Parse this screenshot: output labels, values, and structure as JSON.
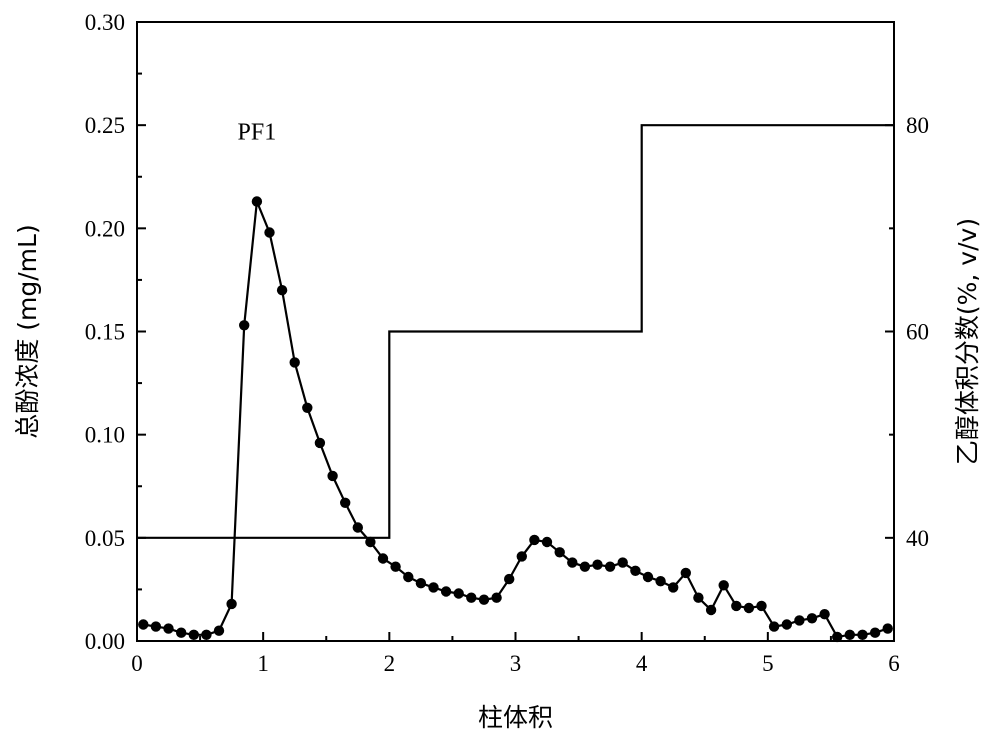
{
  "chart_data": {
    "type": "line",
    "title": "",
    "xlabel": "柱体积",
    "ylabel_left": "总酚浓度 (mg/mL)",
    "ylabel_right": "乙醇体积分数(%, v/v)",
    "xlim": [
      0,
      6
    ],
    "ylim_left": [
      0,
      0.3
    ],
    "ylim_right": [
      30,
      90
    ],
    "x_ticks": [
      {
        "value": 0,
        "label": "0"
      },
      {
        "value": 1,
        "label": "1"
      },
      {
        "value": 2,
        "label": "2"
      },
      {
        "value": 3,
        "label": "3"
      },
      {
        "value": 4,
        "label": "4"
      },
      {
        "value": 5,
        "label": "5"
      },
      {
        "value": 6,
        "label": "6"
      }
    ],
    "y_left_ticks": [
      {
        "value": 0,
        "label": "0.00"
      },
      {
        "value": 0.05,
        "label": "0.05"
      },
      {
        "value": 0.1,
        "label": "0.10"
      },
      {
        "value": 0.15,
        "label": "0.15"
      },
      {
        "value": 0.2,
        "label": "0.20"
      },
      {
        "value": 0.25,
        "label": "0.25"
      },
      {
        "value": 0.3,
        "label": "0.30"
      }
    ],
    "y_right_ticks": [
      {
        "value": 40,
        "label": "40"
      },
      {
        "value": 60,
        "label": "60"
      },
      {
        "value": 80,
        "label": "80"
      }
    ],
    "grid": false,
    "legend": "none",
    "annotations": [
      {
        "text": "PF1",
        "x": 0.95,
        "y": 0.247
      }
    ],
    "series": [
      {
        "axis": "left",
        "style": "line-marker",
        "color": "#000000",
        "x": [
          0.05,
          0.15,
          0.25,
          0.35,
          0.45,
          0.55,
          0.65,
          0.75,
          0.85,
          0.95,
          1.05,
          1.15,
          1.25,
          1.35,
          1.45,
          1.55,
          1.65,
          1.75,
          1.85,
          1.95,
          2.05,
          2.15,
          2.25,
          2.35,
          2.45,
          2.55,
          2.65,
          2.75,
          2.85,
          2.95,
          3.05,
          3.15,
          3.25,
          3.35,
          3.45,
          3.55,
          3.65,
          3.75,
          3.85,
          3.95,
          4.05,
          4.15,
          4.25,
          4.35,
          4.45,
          4.55,
          4.65,
          4.75,
          4.85,
          4.95,
          5.05,
          5.15,
          5.25,
          5.35,
          5.45,
          5.55,
          5.65,
          5.75,
          5.85,
          5.95
        ],
        "values": [
          0.008,
          0.007,
          0.006,
          0.004,
          0.003,
          0.003,
          0.005,
          0.018,
          0.153,
          0.213,
          0.198,
          0.17,
          0.135,
          0.113,
          0.096,
          0.08,
          0.067,
          0.055,
          0.048,
          0.04,
          0.036,
          0.031,
          0.028,
          0.026,
          0.024,
          0.023,
          0.021,
          0.02,
          0.021,
          0.03,
          0.041,
          0.049,
          0.048,
          0.043,
          0.038,
          0.036,
          0.037,
          0.036,
          0.038,
          0.034,
          0.031,
          0.029,
          0.026,
          0.033,
          0.021,
          0.015,
          0.027,
          0.017,
          0.016,
          0.017,
          0.007,
          0.008,
          0.01,
          0.011,
          0.013,
          0.002,
          0.003,
          0.003,
          0.004,
          0.006
        ]
      },
      {
        "axis": "right",
        "style": "step",
        "color": "#000000",
        "x": [
          0,
          2,
          2,
          4,
          4,
          6
        ],
        "values": [
          40,
          40,
          60,
          60,
          80,
          80
        ]
      }
    ]
  }
}
